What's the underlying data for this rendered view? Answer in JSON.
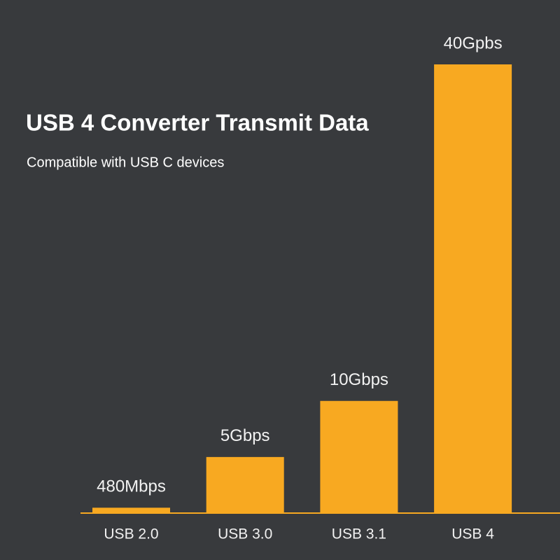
{
  "chart_data": {
    "type": "bar",
    "title": "USB 4 Converter Transmit Data",
    "subtitle": "Compatible with USB C devices",
    "categories": [
      "USB 2.0",
      "USB 3.0",
      "USB 3.1",
      "USB 4"
    ],
    "values": [
      0.48,
      5,
      10,
      40
    ],
    "value_labels": [
      "480Mbps",
      "5Gbps",
      "10Gbps",
      "40Gpbs"
    ],
    "color": "#f8a921"
  }
}
